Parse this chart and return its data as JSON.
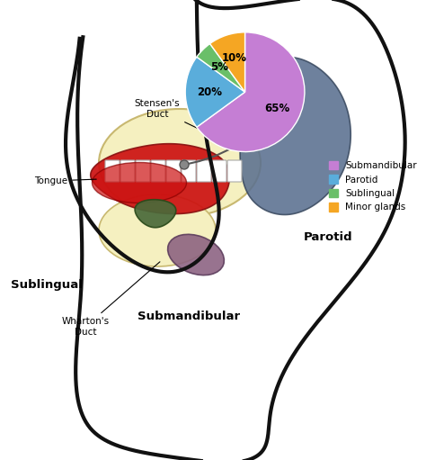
{
  "pie_values": [
    65,
    20,
    5,
    10
  ],
  "pie_labels": [
    "65%",
    "20%",
    "5%",
    "10%"
  ],
  "pie_colors": [
    "#c57ed4",
    "#5aaddb",
    "#6abf69",
    "#f5a623"
  ],
  "legend_labels": [
    "Submandibular",
    "Parotid",
    "Sublingual",
    "Minor glands"
  ],
  "legend_colors": [
    "#c57ed4",
    "#5aaddb",
    "#6abf69",
    "#f5a623"
  ],
  "background_color": "#ffffff",
  "head_outline_color": "#111111",
  "jaw_bone_color": "#f5f0c0",
  "jaw_bone_edge": "#c8b870",
  "parotid_color": "#5a7090",
  "parotid_edge": "#3a4a60",
  "tongue_color": "#cc1111",
  "tongue_edge": "#881111",
  "sublingual_color": "#4a6a3a",
  "sublingual_edge": "#2a4a1a",
  "submandibular_color": "#8a6080",
  "submandibular_edge": "#5a3a5a",
  "teeth_color": "#ffffff",
  "teeth_edge": "#aaaaaa"
}
